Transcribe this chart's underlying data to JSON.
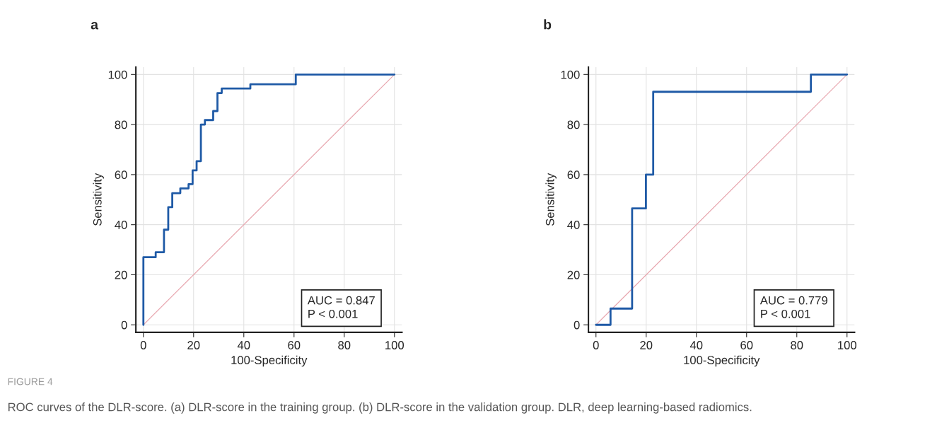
{
  "chart_data": [
    {
      "type": "step",
      "title": "a",
      "xlabel": "100-Specificity",
      "ylabel": "Sensitivity",
      "xlim": [
        -3,
        103
      ],
      "ylim": [
        -3,
        103
      ],
      "xticks": [
        0,
        20,
        40,
        60,
        80,
        100
      ],
      "yticks": [
        0,
        20,
        40,
        60,
        80,
        100
      ],
      "grid": true,
      "series": [
        {
          "color": "#1f5aa6",
          "x": [
            0,
            0,
            4.9,
            8.2,
            9.9,
            11.5,
            14.7,
            18.0,
            19.6,
            21.2,
            22.9,
            24.5,
            27.8,
            29.5,
            31.2,
            42.6,
            60.7,
            100
          ],
          "values": [
            0,
            27,
            29,
            38,
            47,
            52.6,
            54.5,
            56.2,
            61.7,
            65.4,
            80,
            81.8,
            85.4,
            92.6,
            94.4,
            96.1,
            100,
            100
          ]
        },
        {
          "type": "line",
          "color": "#e8a8b0",
          "x": [
            0,
            100
          ],
          "values": [
            0,
            100
          ]
        }
      ],
      "annotations": [
        "AUC = 0.847\nP < 0.001",
        "FIGURE 4",
        "ROC curves of the DLR-score. (a) DLR-score in the training group. (b) DLR-score in the validation group. DLR, deep learning-based radiomics."
      ]
    },
    {
      "type": "step",
      "title": "b",
      "xlabel": "100-Specificity",
      "ylabel": "Sensitivity",
      "xlim": [
        -3,
        103
      ],
      "ylim": [
        -3,
        103
      ],
      "xticks": [
        0,
        20,
        40,
        60,
        80,
        100
      ],
      "yticks": [
        0,
        20,
        40,
        60,
        80,
        100
      ],
      "grid": true,
      "series": [
        {
          "color": "#1f5aa6",
          "x": [
            0,
            5.8,
            14.4,
            19.9,
            22.8,
            85.6,
            100
          ],
          "values": [
            0,
            6.5,
            46.5,
            60,
            93.1,
            100,
            100
          ]
        },
        {
          "type": "line",
          "color": "#e8a8b0",
          "x": [
            0,
            100
          ],
          "values": [
            0,
            100
          ]
        }
      ],
      "annotations": [
        "AUC = 0.779\nP < 0.001"
      ]
    }
  ]
}
